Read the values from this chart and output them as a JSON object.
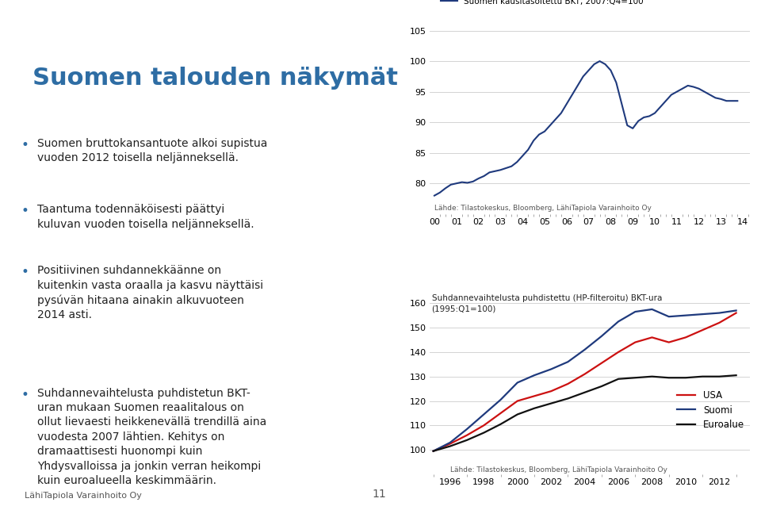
{
  "chart1": {
    "legend_label": "Suomen kausitasoitettu BKT, 2007:Q4=100",
    "ylim": [
      75,
      105
    ],
    "yticks": [
      80,
      85,
      90,
      95,
      100,
      105
    ],
    "ytick_labels": [
      "80",
      "85",
      "90",
      "95",
      "100",
      "105"
    ],
    "xtick_positions": [
      2000,
      2001,
      2002,
      2003,
      2004,
      2005,
      2006,
      2007,
      2008,
      2009,
      2010,
      2011,
      2012,
      2013,
      2014
    ],
    "xtick_labels": [
      "00",
      "01",
      "02",
      "03",
      "04",
      "05",
      "06",
      "07",
      "08",
      "09",
      "10",
      "11",
      "12",
      "13",
      "14"
    ],
    "color": "#1F3A7D",
    "xlim": [
      1999.8,
      2014.3
    ],
    "x": [
      2000.0,
      2000.25,
      2000.5,
      2000.75,
      2001.0,
      2001.25,
      2001.5,
      2001.75,
      2002.0,
      2002.25,
      2002.5,
      2002.75,
      2003.0,
      2003.25,
      2003.5,
      2003.75,
      2004.0,
      2004.25,
      2004.5,
      2004.75,
      2005.0,
      2005.25,
      2005.5,
      2005.75,
      2006.0,
      2006.25,
      2006.5,
      2006.75,
      2007.0,
      2007.25,
      2007.5,
      2007.75,
      2008.0,
      2008.25,
      2008.5,
      2008.75,
      2009.0,
      2009.25,
      2009.5,
      2009.75,
      2010.0,
      2010.25,
      2010.5,
      2010.75,
      2011.0,
      2011.25,
      2011.5,
      2011.75,
      2012.0,
      2012.25,
      2012.5,
      2012.75,
      2013.0,
      2013.25,
      2013.5,
      2013.75
    ],
    "y": [
      78.0,
      78.5,
      79.2,
      79.8,
      80.0,
      80.2,
      80.1,
      80.3,
      80.8,
      81.2,
      81.8,
      82.0,
      82.2,
      82.5,
      82.8,
      83.5,
      84.5,
      85.5,
      87.0,
      88.0,
      88.5,
      89.5,
      90.5,
      91.5,
      93.0,
      94.5,
      96.0,
      97.5,
      98.5,
      99.5,
      100.0,
      99.5,
      98.5,
      96.5,
      93.0,
      89.5,
      89.0,
      90.2,
      90.8,
      91.0,
      91.5,
      92.5,
      93.5,
      94.5,
      95.0,
      95.5,
      96.0,
      95.8,
      95.5,
      95.0,
      94.5,
      94.0,
      93.8,
      93.5,
      93.5,
      93.5
    ],
    "source": "Lähde: Tilastokeskus, Bloomberg, LähiTapiola Varainhoito Oy"
  },
  "chart2": {
    "title_line1": "Suhdannevaihtelusta puhdistettu (HP-filteroitu) BKT-ura",
    "title_line2": "(1995:Q1=100)",
    "ylim": [
      90,
      165
    ],
    "yticks": [
      100,
      110,
      120,
      130,
      140,
      150,
      160
    ],
    "ytick_labels": [
      "100",
      "110",
      "120",
      "130",
      "140",
      "150",
      "160"
    ],
    "xtick_positions": [
      1996,
      1998,
      2000,
      2002,
      2004,
      2006,
      2008,
      2010,
      2012
    ],
    "xtick_labels": [
      "1996",
      "1998",
      "2000",
      "2002",
      "2004",
      "2006",
      "2008",
      "2010",
      "2012"
    ],
    "xlim": [
      1994.8,
      2013.8
    ],
    "series_order": [
      "USA",
      "Suomi",
      "Euroalue"
    ],
    "series": {
      "USA": {
        "color": "#CC1111",
        "x": [
          1995.0,
          1996.0,
          1997.0,
          1998.0,
          1999.0,
          2000.0,
          2001.0,
          2002.0,
          2003.0,
          2004.0,
          2005.0,
          2006.0,
          2007.0,
          2008.0,
          2009.0,
          2010.0,
          2011.0,
          2012.0,
          2013.0
        ],
        "y": [
          99.5,
          102.5,
          106.0,
          110.0,
          115.0,
          120.0,
          122.0,
          124.0,
          127.0,
          131.0,
          135.5,
          140.0,
          144.0,
          146.0,
          144.0,
          146.0,
          149.0,
          152.0,
          156.0
        ]
      },
      "Suomi": {
        "color": "#1F3A7D",
        "x": [
          1995.0,
          1996.0,
          1997.0,
          1998.0,
          1999.0,
          2000.0,
          2001.0,
          2002.0,
          2003.0,
          2004.0,
          2005.0,
          2006.0,
          2007.0,
          2008.0,
          2009.0,
          2010.0,
          2011.0,
          2012.0,
          2013.0
        ],
        "y": [
          99.5,
          103.0,
          108.5,
          114.5,
          120.5,
          127.5,
          130.5,
          133.0,
          136.0,
          141.0,
          146.5,
          152.5,
          156.5,
          157.5,
          154.5,
          155.0,
          155.5,
          156.0,
          157.0
        ]
      },
      "Euroalue": {
        "color": "#111111",
        "x": [
          1995.0,
          1996.0,
          1997.0,
          1998.0,
          1999.0,
          2000.0,
          2001.0,
          2002.0,
          2003.0,
          2004.0,
          2005.0,
          2006.0,
          2007.0,
          2008.0,
          2009.0,
          2010.0,
          2011.0,
          2012.0,
          2013.0
        ],
        "y": [
          99.5,
          101.5,
          104.0,
          107.0,
          110.5,
          114.5,
          117.0,
          119.0,
          121.0,
          123.5,
          126.0,
          129.0,
          129.5,
          130.0,
          129.5,
          129.5,
          130.0,
          130.0,
          130.5
        ]
      }
    },
    "source": "Lähde: Tilastokeskus, Bloomberg, LähiTapiola Varainhoito Oy"
  },
  "slide": {
    "bg_color": "#FFFFFF",
    "title": "Suomen talouden näkymät",
    "title_color": "#2E6DA4",
    "title_fontsize": 22,
    "bullet_color": "#2E6DA4",
    "bullet_fontsize": 10,
    "bullets": [
      "Suomen bruttokansantuote alkoi supistua\nvuoden 2012 toisella neljänneksellä.",
      "Taantuma todennäköisesti päättyi\nkuluvan vuoden toisella neljänneksellä.",
      "Positiivinen suhdannekkäänne on\nkuitenkin vasta oraalla ja kasvu näyttäisi\npysøvän hitaana ainakin alkuvuoteen\n2014 asti.",
      "Suhdannevaihtelusta puhdistetun BKT-\nuran mukaan Suomen reaalitalous on\nollut lievaesti heikkenevällä trendillä aina\nvuodesta 2007 lähtien. Kehitys on\ndraamaattisesti huonompi kuin\nYhdysvalloissa ja jonkin verran heikompi\nkuin euroalueella keskimmäärin."
    ],
    "footer": "LähiTapiola Varainhoito Oy",
    "footer_fontsize": 8,
    "page_number": "11"
  }
}
